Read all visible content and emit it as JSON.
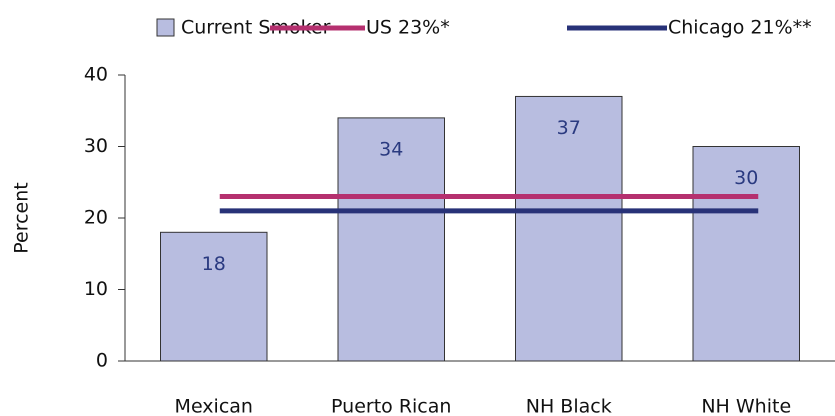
{
  "chart_data": {
    "type": "bar",
    "ylabel": "Percent",
    "categories": [
      "Mexican",
      "Puerto Rican",
      "NH Black",
      "NH White"
    ],
    "series": [
      {
        "name": "Current Smoker",
        "color": "#b8bde0",
        "values": [
          18,
          34,
          37,
          30
        ]
      }
    ],
    "reference_lines": [
      {
        "name": "US 23%*",
        "value": 23,
        "color": "#b5306f"
      },
      {
        "name": "Chicago 21%**",
        "value": 21,
        "color": "#283278"
      }
    ],
    "ylim": [
      0,
      40
    ],
    "yticks": [
      0,
      10,
      20,
      30,
      40
    ],
    "grid": false
  }
}
